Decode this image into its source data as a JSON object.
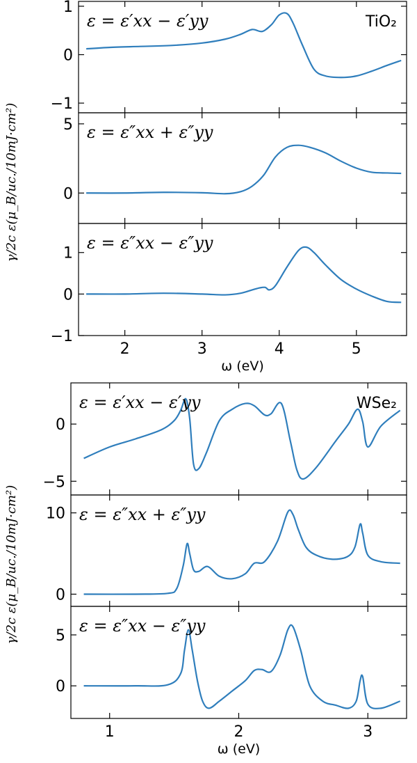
{
  "chart_data": [
    {
      "type": "line",
      "material": "TiO₂",
      "xlabel": "ω (eV)",
      "ylabel": "γ/2c ε(μ_B/uc./10mJ·cm²)",
      "xlim": [
        1.4,
        5.65
      ],
      "xticks": [
        "2",
        "3",
        "4",
        "5"
      ],
      "color": "#2f7ebc",
      "panels": [
        {
          "label": "ε = ε′xx − ε′yy",
          "ylim": [
            -1.2,
            1.1
          ],
          "yticks": [
            "−1",
            "0",
            "1"
          ],
          "x": [
            1.5,
            1.8,
            2.2,
            2.6,
            3.0,
            3.3,
            3.5,
            3.65,
            3.78,
            3.9,
            4.0,
            4.1,
            4.18,
            4.3,
            4.45,
            4.6,
            4.8,
            5.0,
            5.2,
            5.4,
            5.58
          ],
          "y": [
            0.12,
            0.15,
            0.17,
            0.19,
            0.24,
            0.32,
            0.42,
            0.52,
            0.48,
            0.62,
            0.82,
            0.85,
            0.65,
            0.2,
            -0.3,
            -0.44,
            -0.47,
            -0.44,
            -0.34,
            -0.22,
            -0.12
          ]
        },
        {
          "label": "ε = ε″xx + ε″yy",
          "ylim": [
            -2.2,
            5.8
          ],
          "yticks": [
            "0",
            "5"
          ],
          "x": [
            1.5,
            2.0,
            2.5,
            3.0,
            3.3,
            3.5,
            3.65,
            3.8,
            3.95,
            4.1,
            4.25,
            4.4,
            4.6,
            4.8,
            5.0,
            5.2,
            5.4,
            5.58
          ],
          "y": [
            0.0,
            0.0,
            0.05,
            0.02,
            -0.05,
            0.1,
            0.5,
            1.3,
            2.6,
            3.3,
            3.45,
            3.3,
            2.9,
            2.3,
            1.8,
            1.5,
            1.45,
            1.42
          ]
        },
        {
          "label": "ε = ε″xx − ε″yy",
          "ylim": [
            -1.0,
            1.7
          ],
          "yticks": [
            "−1",
            "0",
            "1"
          ],
          "x": [
            1.5,
            2.0,
            2.5,
            3.0,
            3.3,
            3.5,
            3.65,
            3.75,
            3.82,
            3.87,
            3.95,
            4.1,
            4.25,
            4.35,
            4.45,
            4.6,
            4.8,
            5.0,
            5.2,
            5.4,
            5.58
          ],
          "y": [
            0.0,
            0.0,
            0.02,
            0.0,
            -0.02,
            0.02,
            0.1,
            0.15,
            0.16,
            0.1,
            0.2,
            0.65,
            1.05,
            1.13,
            1.0,
            0.7,
            0.35,
            0.12,
            -0.05,
            -0.18,
            -0.2
          ]
        }
      ]
    },
    {
      "type": "line",
      "material": "WSe₂",
      "xlabel": "ω (eV)",
      "ylabel": "γ/2c ε(μ_B/uc./10mJ·cm²)",
      "xlim": [
        0.7,
        3.3
      ],
      "xticks": [
        "1",
        "2",
        "3"
      ],
      "color": "#2f7ebc",
      "panels": [
        {
          "label": "ε = ε′xx − ε′yy",
          "ylim": [
            -6.2,
            3.6
          ],
          "yticks": [
            "−5",
            "0"
          ],
          "x": [
            0.8,
            1.0,
            1.2,
            1.4,
            1.5,
            1.55,
            1.59,
            1.62,
            1.65,
            1.69,
            1.75,
            1.85,
            1.95,
            2.05,
            2.12,
            2.2,
            2.25,
            2.33,
            2.4,
            2.45,
            2.5,
            2.6,
            2.75,
            2.85,
            2.92,
            2.96,
            3.0,
            3.1,
            3.25
          ],
          "y": [
            -3.0,
            -2.0,
            -1.3,
            -0.5,
            0.3,
            1.2,
            2.2,
            0.5,
            -3.5,
            -3.9,
            -2.5,
            0.3,
            1.3,
            1.8,
            1.6,
            0.8,
            0.9,
            1.8,
            -1.5,
            -4.0,
            -4.8,
            -3.8,
            -1.5,
            0.0,
            1.3,
            0.2,
            -2.0,
            -0.2,
            1.2
          ]
        },
        {
          "label": "ε = ε″xx + ε″yy",
          "ylim": [
            -1.5,
            12.2
          ],
          "yticks": [
            "0",
            "10"
          ],
          "x": [
            0.8,
            1.2,
            1.45,
            1.52,
            1.57,
            1.6,
            1.62,
            1.65,
            1.69,
            1.76,
            1.85,
            1.95,
            2.05,
            2.12,
            2.2,
            2.3,
            2.38,
            2.42,
            2.46,
            2.52,
            2.6,
            2.72,
            2.84,
            2.9,
            2.94,
            2.96,
            3.0,
            3.1,
            3.25
          ],
          "y": [
            0.0,
            0.0,
            0.1,
            0.7,
            3.5,
            6.2,
            5.0,
            3.0,
            2.8,
            3.4,
            2.2,
            1.9,
            2.5,
            3.8,
            4.0,
            6.5,
            10.1,
            9.8,
            8.0,
            5.8,
            4.8,
            4.3,
            4.6,
            5.8,
            8.6,
            7.5,
            4.8,
            4.0,
            3.8
          ]
        },
        {
          "label": "ε = ε″xx − ε″yy",
          "ylim": [
            -3.2,
            7.8
          ],
          "yticks": [
            "0",
            "5"
          ],
          "x": [
            0.8,
            1.2,
            1.45,
            1.55,
            1.58,
            1.61,
            1.64,
            1.68,
            1.72,
            1.77,
            1.85,
            1.95,
            2.05,
            2.12,
            2.18,
            2.25,
            2.32,
            2.38,
            2.42,
            2.48,
            2.55,
            2.65,
            2.75,
            2.85,
            2.91,
            2.94,
            2.96,
            3.0,
            3.1,
            3.25
          ],
          "y": [
            0.0,
            0.0,
            0.1,
            1.2,
            3.5,
            5.5,
            3.5,
            0.5,
            -1.5,
            -2.2,
            -1.5,
            -0.5,
            0.5,
            1.5,
            1.6,
            1.4,
            3.0,
            5.5,
            5.8,
            3.5,
            0.0,
            -1.5,
            -1.9,
            -2.2,
            -1.5,
            0.5,
            0.9,
            -1.8,
            -2.2,
            -1.5
          ]
        }
      ]
    }
  ]
}
